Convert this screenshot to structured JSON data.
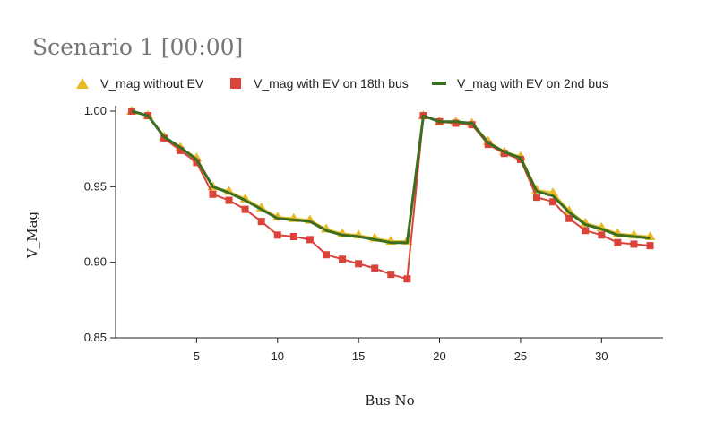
{
  "chart_data": {
    "type": "line",
    "title": "Scenario 1 [00:00]",
    "xlabel": "Bus No",
    "ylabel": "V_Mag",
    "xlim": [
      0,
      33.8
    ],
    "ylim": [
      0.85,
      1.0
    ],
    "xticks": [
      5,
      10,
      15,
      20,
      25,
      30
    ],
    "yticks": [
      0.85,
      0.9,
      0.95,
      1.0
    ],
    "ytick_labels": [
      "0.85",
      "0.90",
      "0.95",
      "1.00"
    ],
    "grid": false,
    "legend_position": "top",
    "x": [
      1,
      2,
      3,
      4,
      5,
      6,
      7,
      8,
      9,
      10,
      11,
      12,
      13,
      14,
      15,
      16,
      17,
      18,
      19,
      20,
      21,
      22,
      23,
      24,
      25,
      26,
      27,
      28,
      29,
      30,
      31,
      32,
      33
    ],
    "series": [
      {
        "name": "V_mag without EV",
        "color": "#e8b923",
        "marker": "triangle",
        "values": [
          1.0,
          0.997,
          0.983,
          0.976,
          0.969,
          0.95,
          0.947,
          0.942,
          0.936,
          0.93,
          0.929,
          0.928,
          0.922,
          0.919,
          0.918,
          0.916,
          0.914,
          0.914,
          0.997,
          0.993,
          0.993,
          0.992,
          0.98,
          0.973,
          0.97,
          0.948,
          0.946,
          0.934,
          0.926,
          0.923,
          0.919,
          0.918,
          0.917
        ]
      },
      {
        "name": "V_mag with EV on 18th bus",
        "color": "#d9433a",
        "marker": "square",
        "values": [
          1.0,
          0.997,
          0.982,
          0.974,
          0.966,
          0.945,
          0.941,
          0.935,
          0.927,
          0.918,
          0.917,
          0.915,
          0.905,
          0.902,
          0.899,
          0.896,
          0.892,
          0.889,
          0.997,
          0.993,
          0.992,
          0.991,
          0.978,
          0.972,
          0.968,
          0.943,
          0.94,
          0.929,
          0.921,
          0.918,
          0.913,
          0.912,
          0.911
        ]
      },
      {
        "name": "V_mag with EV on 2nd bus",
        "color": "#3b6e1f",
        "marker": "line",
        "values": [
          1.0,
          0.997,
          0.983,
          0.976,
          0.968,
          0.95,
          0.946,
          0.941,
          0.935,
          0.929,
          0.928,
          0.927,
          0.921,
          0.918,
          0.917,
          0.915,
          0.913,
          0.913,
          0.997,
          0.993,
          0.993,
          0.992,
          0.979,
          0.973,
          0.969,
          0.947,
          0.944,
          0.933,
          0.925,
          0.922,
          0.918,
          0.917,
          0.916
        ]
      }
    ]
  }
}
